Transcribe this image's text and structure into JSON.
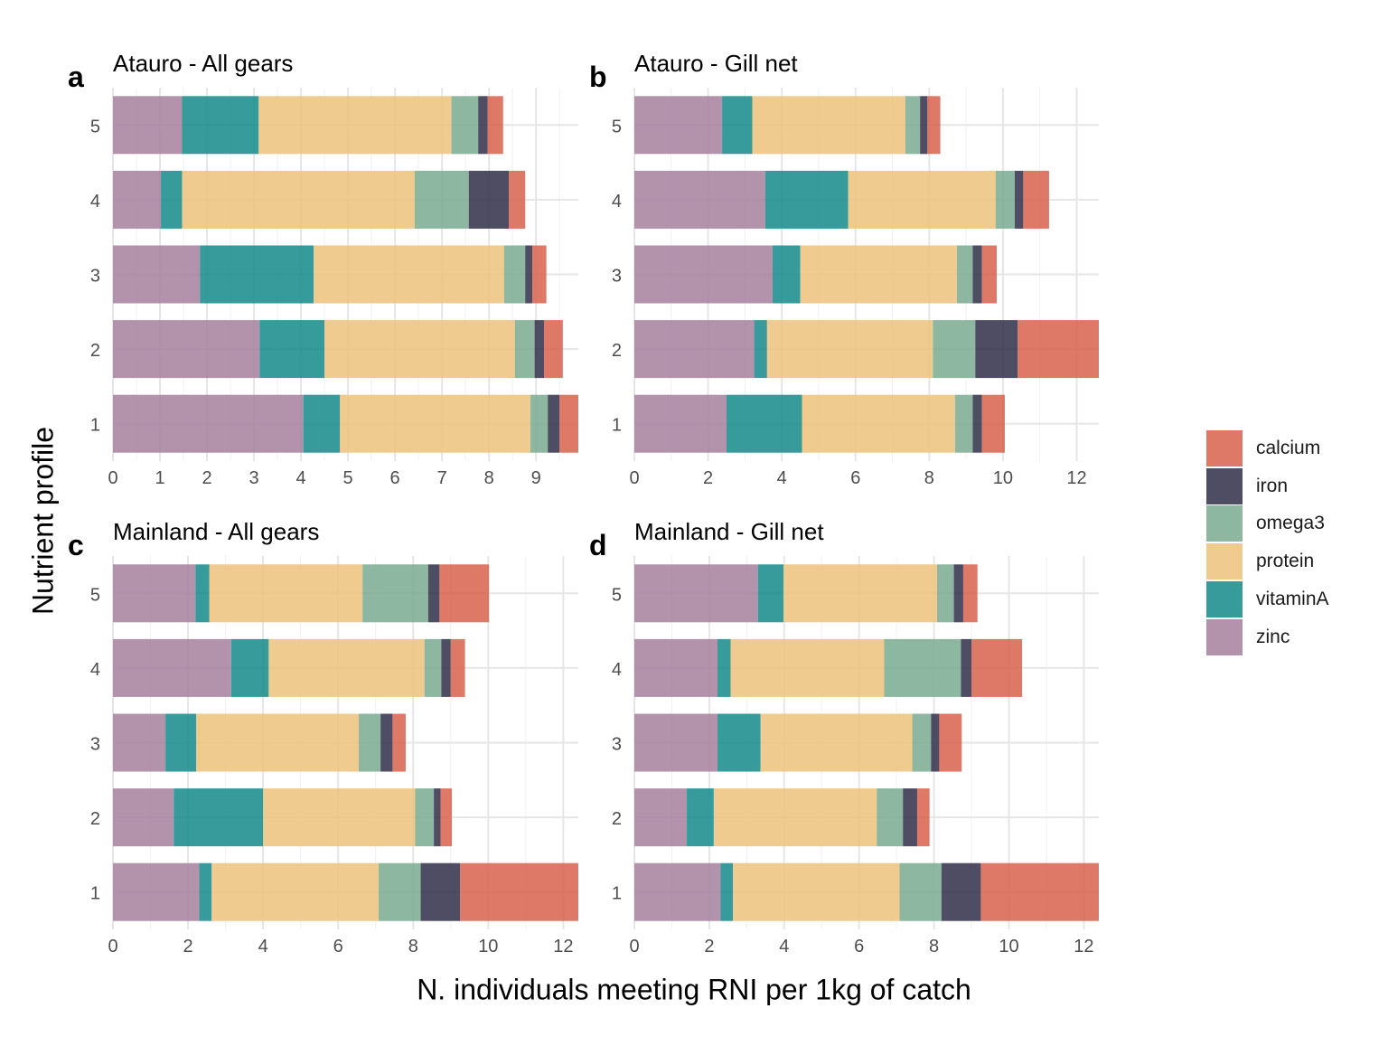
{
  "chart_data": {
    "type": "bar",
    "orientation": "horizontal",
    "stacked": true,
    "ylabel": "Nutrient profile",
    "xlabel": "N. individuals meeting RNI per 1kg of catch",
    "categories": [
      "1",
      "2",
      "3",
      "4",
      "5"
    ],
    "stack_order": [
      "zinc",
      "vitaminA",
      "protein",
      "omega3",
      "iron",
      "calcium"
    ],
    "colors": {
      "zinc": "#A67F9E",
      "vitaminA": "#14898A",
      "protein": "#EDC27C",
      "omega3": "#79AA8F",
      "iron": "#2F2E48",
      "calcium": "#D8604C"
    },
    "legend": {
      "position": "right",
      "items": [
        "calcium",
        "iron",
        "omega3",
        "protein",
        "vitaminA",
        "zinc"
      ]
    },
    "panels": [
      {
        "tag": "a",
        "title": "Atauro - All gears",
        "xlim": [
          0,
          9.9
        ],
        "xticks": [
          0,
          1,
          2,
          3,
          4,
          5,
          6,
          7,
          8,
          9
        ],
        "bars": {
          "1": {
            "zinc": 4.05,
            "vitaminA": 0.78,
            "protein": 4.05,
            "omega3": 0.37,
            "iron": 0.25,
            "calcium": 0.42
          },
          "2": {
            "zinc": 3.12,
            "vitaminA": 1.38,
            "protein": 4.05,
            "omega3": 0.42,
            "iron": 0.2,
            "calcium": 0.4
          },
          "3": {
            "zinc": 1.85,
            "vitaminA": 2.42,
            "protein": 4.05,
            "omega3": 0.45,
            "iron": 0.15,
            "calcium": 0.3
          },
          "4": {
            "zinc": 1.02,
            "vitaminA": 0.45,
            "protein": 4.95,
            "omega3": 1.15,
            "iron": 0.85,
            "calcium": 0.35
          },
          "5": {
            "zinc": 1.47,
            "vitaminA": 1.63,
            "protein": 4.1,
            "omega3": 0.57,
            "iron": 0.2,
            "calcium": 0.33
          }
        }
      },
      {
        "tag": "b",
        "title": "Atauro - Gill net",
        "xlim": [
          0,
          12.6
        ],
        "xticks": [
          0,
          2,
          4,
          6,
          8,
          10,
          12
        ],
        "bars": {
          "1": {
            "zinc": 2.5,
            "vitaminA": 2.05,
            "protein": 4.15,
            "omega3": 0.48,
            "iron": 0.25,
            "calcium": 0.62
          },
          "2": {
            "zinc": 3.25,
            "vitaminA": 0.35,
            "protein": 4.5,
            "omega3": 1.15,
            "iron": 1.15,
            "calcium": 2.2
          },
          "3": {
            "zinc": 3.75,
            "vitaminA": 0.75,
            "protein": 4.25,
            "omega3": 0.43,
            "iron": 0.25,
            "calcium": 0.4
          },
          "4": {
            "zinc": 3.55,
            "vitaminA": 2.25,
            "protein": 4.0,
            "omega3": 0.52,
            "iron": 0.23,
            "calcium": 0.7
          },
          "5": {
            "zinc": 2.38,
            "vitaminA": 0.82,
            "protein": 4.15,
            "omega3": 0.4,
            "iron": 0.2,
            "calcium": 0.35
          }
        }
      },
      {
        "tag": "c",
        "title": "Mainland - All gears",
        "xlim": [
          0,
          12.4
        ],
        "xticks": [
          0,
          2,
          4,
          6,
          8,
          10,
          12
        ],
        "bars": {
          "1": {
            "zinc": 2.3,
            "vitaminA": 0.33,
            "protein": 4.45,
            "omega3": 1.12,
            "iron": 1.05,
            "calcium": 3.2
          },
          "2": {
            "zinc": 1.62,
            "vitaminA": 2.38,
            "protein": 4.05,
            "omega3": 0.5,
            "iron": 0.18,
            "calcium": 0.3
          },
          "3": {
            "zinc": 1.4,
            "vitaminA": 0.82,
            "protein": 4.33,
            "omega3": 0.58,
            "iron": 0.32,
            "calcium": 0.35
          },
          "4": {
            "zinc": 3.15,
            "vitaminA": 1.0,
            "protein": 4.15,
            "omega3": 0.45,
            "iron": 0.25,
            "calcium": 0.38
          },
          "5": {
            "zinc": 2.2,
            "vitaminA": 0.37,
            "protein": 4.08,
            "omega3": 1.75,
            "iron": 0.3,
            "calcium": 1.32
          }
        }
      },
      {
        "tag": "d",
        "title": "Mainland - Gill net",
        "xlim": [
          0,
          12.4
        ],
        "xticks": [
          0,
          2,
          4,
          6,
          8,
          10,
          12
        ],
        "bars": {
          "1": {
            "zinc": 2.3,
            "vitaminA": 0.33,
            "protein": 4.45,
            "omega3": 1.12,
            "iron": 1.05,
            "calcium": 3.2
          },
          "2": {
            "zinc": 1.4,
            "vitaminA": 0.72,
            "protein": 4.35,
            "omega3": 0.7,
            "iron": 0.38,
            "calcium": 0.33
          },
          "3": {
            "zinc": 2.22,
            "vitaminA": 1.15,
            "protein": 4.05,
            "omega3": 0.5,
            "iron": 0.22,
            "calcium": 0.6
          },
          "4": {
            "zinc": 2.22,
            "vitaminA": 0.35,
            "protein": 4.1,
            "omega3": 2.05,
            "iron": 0.28,
            "calcium": 1.35
          },
          "5": {
            "zinc": 3.3,
            "vitaminA": 0.68,
            "protein": 4.1,
            "omega3": 0.45,
            "iron": 0.25,
            "calcium": 0.38
          }
        }
      }
    ]
  }
}
